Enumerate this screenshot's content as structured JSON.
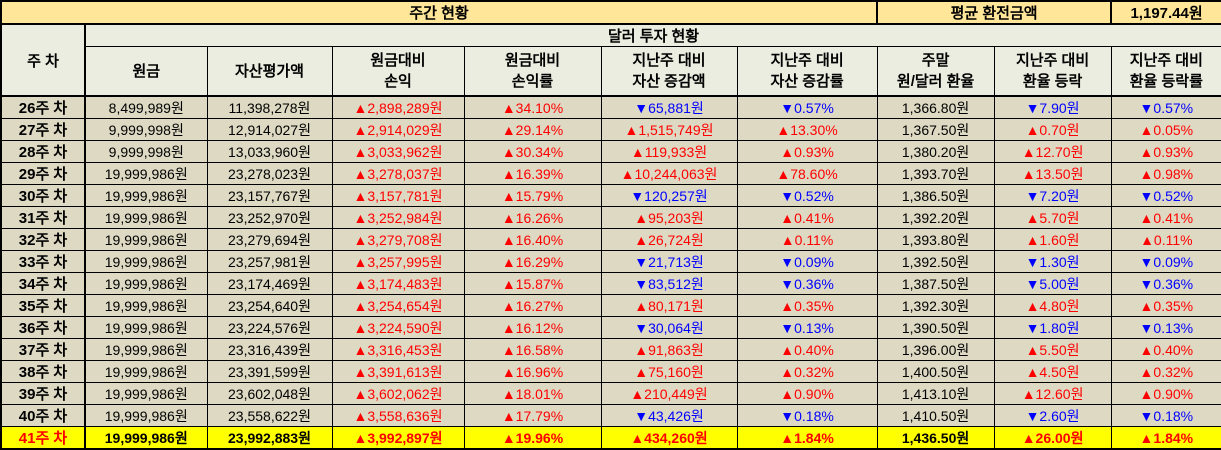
{
  "table": {
    "top": {
      "weekly_status": "주간 현황",
      "avg_exchange_label": "평균 환전금액",
      "avg_exchange_value": "1,197.44원"
    },
    "week_header": "주 차",
    "section_header": "달러 투자 현황",
    "columns": [
      "원금",
      "자산평가액",
      "원금대비\n손익",
      "원금대비\n손익률",
      "지난주 대비\n자산 증감액",
      "지난주 대비\n자산 증감률",
      "주말\n원/달러 환율",
      "지난주 대비\n환율 등락",
      "지난주 대비\n환율 등락률"
    ],
    "colors": {
      "header_yellow": "#FFE699",
      "header_green": "#EAEDDF",
      "row_beige": "#DDD9C3",
      "highlight_yellow": "#FFFF00",
      "up_red": "#FF0000",
      "down_blue": "#0000FF"
    },
    "rows": [
      {
        "week": "26주 차",
        "highlight": false,
        "cells": [
          "8,499,989원",
          "11,398,278원",
          "▲2,898,289원",
          "▲34.10%",
          "▼65,881원",
          "▼0.57%",
          "1,366.80원",
          "▼7.90원",
          "▼0.57%"
        ]
      },
      {
        "week": "27주 차",
        "highlight": false,
        "cells": [
          "9,999,998원",
          "12,914,027원",
          "▲2,914,029원",
          "▲29.14%",
          "▲1,515,749원",
          "▲13.30%",
          "1,367.50원",
          "▲0.70원",
          "▲0.05%"
        ]
      },
      {
        "week": "28주 차",
        "highlight": false,
        "cells": [
          "9,999,998원",
          "13,033,960원",
          "▲3,033,962원",
          "▲30.34%",
          "▲119,933원",
          "▲0.93%",
          "1,380.20원",
          "▲12.70원",
          "▲0.93%"
        ]
      },
      {
        "week": "29주 차",
        "highlight": false,
        "cells": [
          "19,999,986원",
          "23,278,023원",
          "▲3,278,037원",
          "▲16.39%",
          "▲10,244,063원",
          "▲78.60%",
          "1,393.70원",
          "▲13.50원",
          "▲0.98%"
        ]
      },
      {
        "week": "30주 차",
        "highlight": false,
        "cells": [
          "19,999,986원",
          "23,157,767원",
          "▲3,157,781원",
          "▲15.79%",
          "▼120,257원",
          "▼0.52%",
          "1,386.50원",
          "▼7.20원",
          "▼0.52%"
        ]
      },
      {
        "week": "31주 차",
        "highlight": false,
        "cells": [
          "19,999,986원",
          "23,252,970원",
          "▲3,252,984원",
          "▲16.26%",
          "▲95,203원",
          "▲0.41%",
          "1,392.20원",
          "▲5.70원",
          "▲0.41%"
        ]
      },
      {
        "week": "32주 차",
        "highlight": false,
        "cells": [
          "19,999,986원",
          "23,279,694원",
          "▲3,279,708원",
          "▲16.40%",
          "▲26,724원",
          "▲0.11%",
          "1,393.80원",
          "▲1.60원",
          "▲0.11%"
        ]
      },
      {
        "week": "33주 차",
        "highlight": false,
        "cells": [
          "19,999,986원",
          "23,257,981원",
          "▲3,257,995원",
          "▲16.29%",
          "▼21,713원",
          "▼0.09%",
          "1,392.50원",
          "▼1.30원",
          "▼0.09%"
        ]
      },
      {
        "week": "34주 차",
        "highlight": false,
        "cells": [
          "19,999,986원",
          "23,174,469원",
          "▲3,174,483원",
          "▲15.87%",
          "▼83,512원",
          "▼0.36%",
          "1,387.50원",
          "▼5.00원",
          "▼0.36%"
        ]
      },
      {
        "week": "35주 차",
        "highlight": false,
        "cells": [
          "19,999,986원",
          "23,254,640원",
          "▲3,254,654원",
          "▲16.27%",
          "▲80,171원",
          "▲0.35%",
          "1,392.30원",
          "▲4.80원",
          "▲0.35%"
        ]
      },
      {
        "week": "36주 차",
        "highlight": false,
        "cells": [
          "19,999,986원",
          "23,224,576원",
          "▲3,224,590원",
          "▲16.12%",
          "▼30,064원",
          "▼0.13%",
          "1,390.50원",
          "▼1.80원",
          "▼0.13%"
        ]
      },
      {
        "week": "37주 차",
        "highlight": false,
        "cells": [
          "19,999,986원",
          "23,316,439원",
          "▲3,316,453원",
          "▲16.58%",
          "▲91,863원",
          "▲0.40%",
          "1,396.00원",
          "▲5.50원",
          "▲0.40%"
        ]
      },
      {
        "week": "38주 차",
        "highlight": false,
        "cells": [
          "19,999,986원",
          "23,391,599원",
          "▲3,391,613원",
          "▲16.96%",
          "▲75,160원",
          "▲0.32%",
          "1,400.50원",
          "▲4.50원",
          "▲0.32%"
        ]
      },
      {
        "week": "39주 차",
        "highlight": false,
        "cells": [
          "19,999,986원",
          "23,602,048원",
          "▲3,602,062원",
          "▲18.01%",
          "▲210,449원",
          "▲0.90%",
          "1,413.10원",
          "▲12.60원",
          "▲0.90%"
        ]
      },
      {
        "week": "40주 차",
        "highlight": false,
        "cells": [
          "19,999,986원",
          "23,558,622원",
          "▲3,558,636원",
          "▲17.79%",
          "▼43,426원",
          "▼0.18%",
          "1,410.50원",
          "▼2.60원",
          "▼0.18%"
        ]
      },
      {
        "week": "41주 차",
        "highlight": true,
        "cells": [
          "19,999,986원",
          "23,992,883원",
          "▲3,992,897원",
          "▲19.96%",
          "▲434,260원",
          "▲1.84%",
          "1,436.50원",
          "▲26.00원",
          "▲1.84%"
        ]
      }
    ]
  }
}
